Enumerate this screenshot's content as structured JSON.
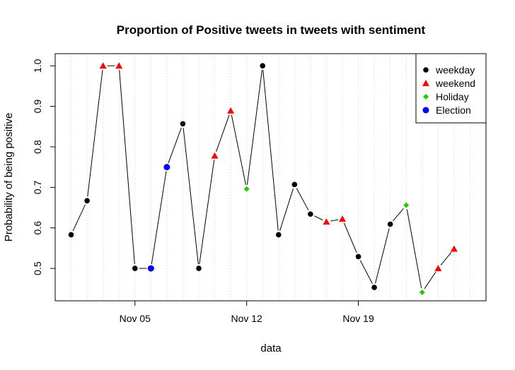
{
  "chart_data": {
    "type": "scatter",
    "title": "Proportion of Positive tweets in tweets with sentiment",
    "xlabel": "data",
    "ylabel": "Probability of being positive",
    "x_tick_labels": [
      {
        "date": "2012-11-05",
        "label": "Nov 05"
      },
      {
        "date": "2012-11-12",
        "label": "Nov 12"
      },
      {
        "date": "2012-11-19",
        "label": "Nov 19"
      }
    ],
    "x_range": [
      "2012-10-31",
      "2012-11-27"
    ],
    "y_ticks": [
      0.5,
      0.6,
      0.7,
      0.8,
      0.9,
      1.0
    ],
    "y_tick_labels": [
      "0.5",
      "0.6",
      "0.7",
      "0.8",
      "0.9",
      "1.0"
    ],
    "ylim": [
      0.42,
      1.03
    ],
    "grid": "vertical dotted lines at each day",
    "legend_position": "top-right",
    "legend": [
      {
        "name": "weekday",
        "color": "#000000",
        "marker": "circle"
      },
      {
        "name": "weekend",
        "color": "#ff0000",
        "marker": "triangle"
      },
      {
        "name": "Holiday",
        "color": "#22cc00",
        "marker": "diamond"
      },
      {
        "name": "Election",
        "color": "#0000ff",
        "marker": "circle"
      }
    ],
    "points": [
      {
        "date": "2012-11-01",
        "value": 0.583,
        "category": "weekday"
      },
      {
        "date": "2012-11-02",
        "value": 0.667,
        "category": "weekday"
      },
      {
        "date": "2012-11-03",
        "value": 1.0,
        "category": "weekend"
      },
      {
        "date": "2012-11-04",
        "value": 1.0,
        "category": "weekend"
      },
      {
        "date": "2012-11-05",
        "value": 0.5,
        "category": "weekday"
      },
      {
        "date": "2012-11-06",
        "value": 0.5,
        "category": "Election"
      },
      {
        "date": "2012-11-07",
        "value": 0.75,
        "category": "Election"
      },
      {
        "date": "2012-11-08",
        "value": 0.857,
        "category": "weekday"
      },
      {
        "date": "2012-11-09",
        "value": 0.5,
        "category": "weekday"
      },
      {
        "date": "2012-11-10",
        "value": 0.778,
        "category": "weekend"
      },
      {
        "date": "2012-11-11",
        "value": 0.889,
        "category": "weekend"
      },
      {
        "date": "2012-11-12",
        "value": 0.696,
        "category": "Holiday"
      },
      {
        "date": "2012-11-13",
        "value": 1.0,
        "category": "weekday"
      },
      {
        "date": "2012-11-14",
        "value": 0.583,
        "category": "weekday"
      },
      {
        "date": "2012-11-15",
        "value": 0.707,
        "category": "weekday"
      },
      {
        "date": "2012-11-16",
        "value": 0.634,
        "category": "weekday"
      },
      {
        "date": "2012-11-17",
        "value": 0.615,
        "category": "weekend"
      },
      {
        "date": "2012-11-18",
        "value": 0.622,
        "category": "weekend"
      },
      {
        "date": "2012-11-19",
        "value": 0.529,
        "category": "weekday"
      },
      {
        "date": "2012-11-20",
        "value": 0.453,
        "category": "weekday"
      },
      {
        "date": "2012-11-21",
        "value": 0.609,
        "category": "weekday"
      },
      {
        "date": "2012-11-22",
        "value": 0.656,
        "category": "Holiday"
      },
      {
        "date": "2012-11-23",
        "value": 0.441,
        "category": "Holiday"
      },
      {
        "date": "2012-11-24",
        "value": 0.5,
        "category": "weekend"
      },
      {
        "date": "2012-11-25",
        "value": 0.548,
        "category": "weekend"
      }
    ]
  }
}
